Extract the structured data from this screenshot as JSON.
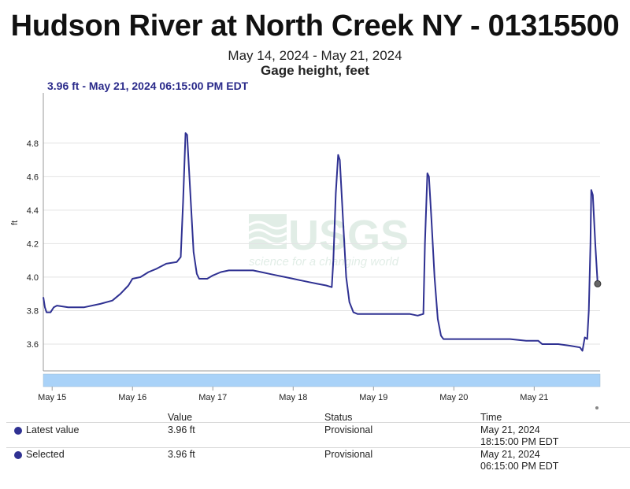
{
  "title": "Hudson River at North Creek NY - 01315500",
  "subtitle": "May 14, 2024 - May 21, 2024",
  "parameter": "Gage height, feet",
  "readout": "3.96 ft - May 21, 2024 06:15:00 PM EDT",
  "watermark": {
    "logo": "USGS",
    "tagline": "science for a changing world"
  },
  "colors": {
    "series": "#2f3192",
    "approval_bar": "#a9d2f8",
    "grid": "#e3e3e3"
  },
  "chart_data": {
    "type": "line",
    "ylabel": "ft",
    "ylim": [
      3.44,
      5.1
    ],
    "yticks": [
      "3.6",
      "3.8",
      "4.0",
      "4.2",
      "4.4",
      "4.6",
      "4.8"
    ],
    "xlim": [
      14.89,
      21.82
    ],
    "xticks": [
      {
        "x": 15,
        "label": "May 15"
      },
      {
        "x": 16,
        "label": "May 16"
      },
      {
        "x": 17,
        "label": "May 17"
      },
      {
        "x": 18,
        "label": "May 18"
      },
      {
        "x": 19,
        "label": "May 19"
      },
      {
        "x": 20,
        "label": "May 20"
      },
      {
        "x": 21,
        "label": "May 21"
      }
    ],
    "grid": true,
    "series": [
      {
        "values": [
          [
            14.89,
            3.88
          ],
          [
            14.91,
            3.82
          ],
          [
            14.93,
            3.79
          ],
          [
            14.98,
            3.79
          ],
          [
            15.02,
            3.82
          ],
          [
            15.06,
            3.83
          ],
          [
            15.2,
            3.82
          ],
          [
            15.4,
            3.82
          ],
          [
            15.6,
            3.84
          ],
          [
            15.75,
            3.86
          ],
          [
            15.85,
            3.9
          ],
          [
            15.95,
            3.95
          ],
          [
            16.0,
            3.99
          ],
          [
            16.1,
            4.0
          ],
          [
            16.2,
            4.03
          ],
          [
            16.3,
            4.05
          ],
          [
            16.42,
            4.08
          ],
          [
            16.55,
            4.09
          ],
          [
            16.6,
            4.12
          ],
          [
            16.63,
            4.45
          ],
          [
            16.66,
            4.86
          ],
          [
            16.68,
            4.85
          ],
          [
            16.72,
            4.5
          ],
          [
            16.76,
            4.15
          ],
          [
            16.8,
            4.02
          ],
          [
            16.83,
            3.99
          ],
          [
            16.93,
            3.99
          ],
          [
            17.0,
            4.01
          ],
          [
            17.1,
            4.03
          ],
          [
            17.2,
            4.04
          ],
          [
            17.3,
            4.04
          ],
          [
            17.4,
            4.04
          ],
          [
            17.5,
            4.04
          ],
          [
            17.6,
            4.03
          ],
          [
            17.7,
            4.02
          ],
          [
            17.8,
            4.01
          ],
          [
            17.9,
            4.0
          ],
          [
            18.0,
            3.99
          ],
          [
            18.1,
            3.98
          ],
          [
            18.2,
            3.97
          ],
          [
            18.3,
            3.96
          ],
          [
            18.41,
            3.95
          ],
          [
            18.48,
            3.94
          ],
          [
            18.5,
            4.1
          ],
          [
            18.53,
            4.5
          ],
          [
            18.56,
            4.73
          ],
          [
            18.58,
            4.7
          ],
          [
            18.62,
            4.35
          ],
          [
            18.66,
            4.0
          ],
          [
            18.7,
            3.85
          ],
          [
            18.75,
            3.79
          ],
          [
            18.8,
            3.78
          ],
          [
            19.0,
            3.78
          ],
          [
            19.2,
            3.78
          ],
          [
            19.38,
            3.78
          ],
          [
            19.45,
            3.78
          ],
          [
            19.55,
            3.77
          ],
          [
            19.62,
            3.78
          ],
          [
            19.64,
            4.2
          ],
          [
            19.67,
            4.62
          ],
          [
            19.69,
            4.6
          ],
          [
            19.72,
            4.35
          ],
          [
            19.76,
            4.0
          ],
          [
            19.8,
            3.75
          ],
          [
            19.84,
            3.65
          ],
          [
            19.87,
            3.63
          ],
          [
            20.0,
            3.63
          ],
          [
            20.2,
            3.63
          ],
          [
            20.35,
            3.63
          ],
          [
            20.5,
            3.63
          ],
          [
            20.7,
            3.63
          ],
          [
            20.9,
            3.62
          ],
          [
            21.05,
            3.62
          ],
          [
            21.1,
            3.6
          ],
          [
            21.3,
            3.6
          ],
          [
            21.45,
            3.59
          ],
          [
            21.57,
            3.58
          ],
          [
            21.6,
            3.56
          ],
          [
            21.63,
            3.64
          ],
          [
            21.66,
            3.63
          ],
          [
            21.68,
            3.8
          ],
          [
            21.7,
            4.2
          ],
          [
            21.71,
            4.52
          ],
          [
            21.73,
            4.49
          ],
          [
            21.76,
            4.2
          ],
          [
            21.79,
            3.96
          ]
        ]
      }
    ]
  },
  "table": {
    "headers": {
      "value": "Value",
      "status": "Status",
      "time": "Time"
    },
    "rows": [
      {
        "label": "Latest value",
        "value": "3.96 ft",
        "status": "Provisional",
        "time_line1": "May 21, 2024",
        "time_line2": "18:15:00 PM EDT"
      },
      {
        "label": "Selected",
        "value": "3.96 ft",
        "status": "Provisional",
        "time_line1": "May 21, 2024",
        "time_line2": "06:15:00 PM EDT"
      }
    ]
  }
}
